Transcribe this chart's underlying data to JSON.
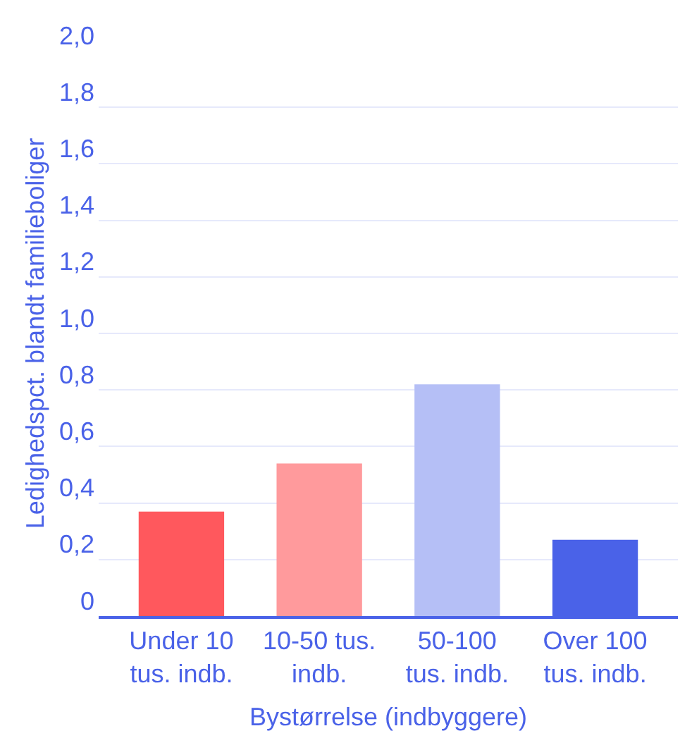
{
  "chart_data": {
    "type": "bar",
    "xlabel": "Bystørrelse (indbyggere)",
    "ylabel": "Ledighedspct. blandt familieboliger",
    "categories": [
      "Under 10\ntus. indb.",
      "10-50 tus.\nindb.",
      "50-100\ntus. indb.",
      "Over 100\ntus. indb."
    ],
    "values": [
      0.37,
      0.54,
      0.82,
      0.27
    ],
    "colors": [
      "#ff585d",
      "#ff9a9c",
      "#b5bff6",
      "#4a62e8"
    ],
    "ylim": [
      0,
      2.0
    ],
    "yticks": [
      0,
      {
        "value": 0.2,
        "label": "0,2"
      },
      {
        "value": 0.4,
        "label": "0,4"
      },
      {
        "value": 0.6,
        "label": "0,6"
      },
      {
        "value": 0.8,
        "label": "0,8"
      },
      {
        "value": 1.0,
        "label": "1,0"
      },
      {
        "value": 1.2,
        "label": "1,2"
      },
      {
        "value": 1.4,
        "label": "1,4"
      },
      {
        "value": 1.6,
        "label": "1,6"
      },
      {
        "value": 1.8,
        "label": "1,8"
      },
      {
        "value": 2.0,
        "label": "2,0"
      }
    ],
    "grid": "y"
  }
}
